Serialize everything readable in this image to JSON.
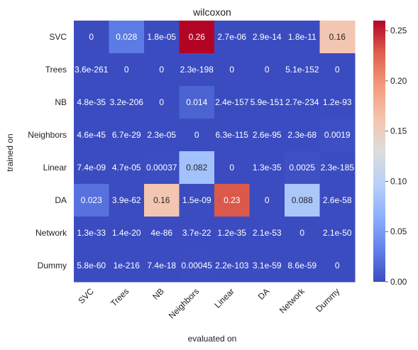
{
  "chart_data": {
    "type": "heatmap",
    "title": "wilcoxon",
    "xlabel": "evaluated on",
    "ylabel": "trained on",
    "x_categories": [
      "SVC",
      "Trees",
      "NB",
      "Neighbors",
      "Linear",
      "DA",
      "Network",
      "Dummy"
    ],
    "y_categories": [
      "SVC",
      "Trees",
      "NB",
      "Neighbors",
      "Linear",
      "DA",
      "Network",
      "Dummy"
    ],
    "values": [
      [
        0,
        0.028,
        1.8e-05,
        0.26,
        2.7e-06,
        2.9e-14,
        1.8e-11,
        0.16
      ],
      [
        3.6e-261,
        0,
        0,
        2.3e-198,
        0,
        0,
        5.1e-152,
        0
      ],
      [
        4.8e-35,
        3.2e-206,
        0,
        0.014,
        2.4e-157,
        5.9e-151,
        2.7e-234,
        1.2e-93
      ],
      [
        4.6e-45,
        6.7e-29,
        2.3e-05,
        0,
        6.3e-115,
        2.6e-95,
        2.3e-68,
        0.0019
      ],
      [
        7.4e-09,
        4.7e-05,
        0.00037,
        0.082,
        0,
        1.3e-35,
        0.0025,
        2.3e-185
      ],
      [
        0.023,
        3.9e-62,
        0.16,
        1.5e-09,
        0.23,
        0,
        0.088,
        2.6e-58
      ],
      [
        1.3e-33,
        1.4e-20,
        4e-86,
        3.7e-22,
        1.2e-35,
        2.1e-53,
        0,
        2.1e-50
      ],
      [
        5.8e-60,
        1e-216,
        7.4e-18,
        0.00045,
        2.2e-103,
        3.1e-59,
        8.6e-59,
        0
      ]
    ],
    "labels": [
      [
        "0",
        "0.028",
        "1.8e-05",
        "0.26",
        "2.7e-06",
        "2.9e-14",
        "1.8e-11",
        "0.16"
      ],
      [
        "3.6e-261",
        "0",
        "0",
        "2.3e-198",
        "0",
        "0",
        "5.1e-152",
        "0"
      ],
      [
        "4.8e-35",
        "3.2e-206",
        "0",
        "0.014",
        "2.4e-157",
        "5.9e-151",
        "2.7e-234",
        "1.2e-93"
      ],
      [
        "4.6e-45",
        "6.7e-29",
        "2.3e-05",
        "0",
        "6.3e-115",
        "2.6e-95",
        "2.3e-68",
        "0.0019"
      ],
      [
        "7.4e-09",
        "4.7e-05",
        "0.00037",
        "0.082",
        "0",
        "1.3e-35",
        "0.0025",
        "2.3e-185"
      ],
      [
        "0.023",
        "3.9e-62",
        "0.16",
        "1.5e-09",
        "0.23",
        "0",
        "0.088",
        "2.6e-58"
      ],
      [
        "1.3e-33",
        "1.4e-20",
        "4e-86",
        "3.7e-22",
        "1.2e-35",
        "2.1e-53",
        "0",
        "2.1e-50"
      ],
      [
        "5.8e-60",
        "1e-216",
        "7.4e-18",
        "0.00045",
        "2.2e-103",
        "3.1e-59",
        "8.6e-59",
        "0"
      ]
    ],
    "colormap": "coolwarm",
    "colorbar": {
      "range": [
        0,
        0.26
      ],
      "ticks": [
        0.0,
        0.05,
        0.1,
        0.15,
        0.2,
        0.25
      ],
      "tick_labels": [
        "0.00",
        "0.05",
        "0.10",
        "0.15",
        "0.20",
        "0.25"
      ]
    },
    "grid": false
  }
}
